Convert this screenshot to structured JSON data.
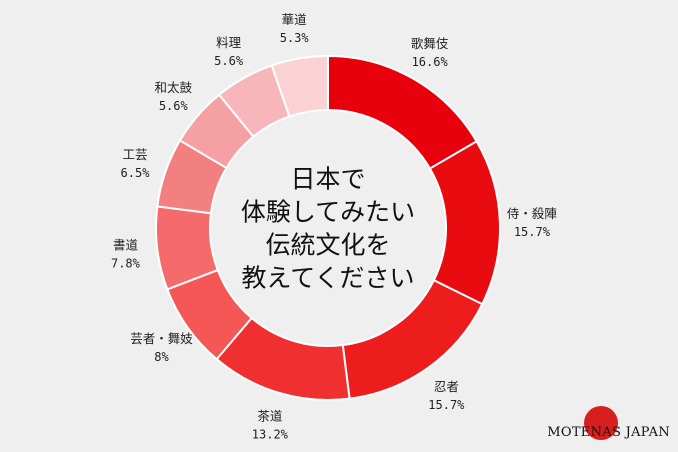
{
  "chart_data": {
    "type": "pie",
    "donut": true,
    "center_text": [
      "日本で",
      "体験してみたい",
      "伝統文化を",
      "教えてください"
    ],
    "slices": [
      {
        "label": "歌舞伎",
        "pct": "16.6%",
        "value": 16.6,
        "color": "#e8000d"
      },
      {
        "label": "侍・殺陣",
        "pct": "15.7%",
        "value": 15.7,
        "color": "#e80b10"
      },
      {
        "label": "忍者",
        "pct": "15.7%",
        "value": 15.7,
        "color": "#ed1d1d"
      },
      {
        "label": "茶道",
        "pct": "13.2%",
        "value": 13.2,
        "color": "#f03030"
      },
      {
        "label": "芸者・舞妓",
        "pct": "8%",
        "value": 8.0,
        "color": "#f55656"
      },
      {
        "label": "書道",
        "pct": "7.8%",
        "value": 7.8,
        "color": "#f56b6b"
      },
      {
        "label": "工芸",
        "pct": "6.5%",
        "value": 6.5,
        "color": "#f38080"
      },
      {
        "label": "和太鼓",
        "pct": "5.6%",
        "value": 5.6,
        "color": "#f5a0a3"
      },
      {
        "label": "料理",
        "pct": "5.6%",
        "value": 5.6,
        "color": "#f7b7ba"
      },
      {
        "label": "華道",
        "pct": "5.3%",
        "value": 5.3,
        "color": "#fad2d4"
      }
    ]
  },
  "brand": {
    "name": "MOTENAS JAPAN",
    "dot_color": "#d81e1e"
  }
}
